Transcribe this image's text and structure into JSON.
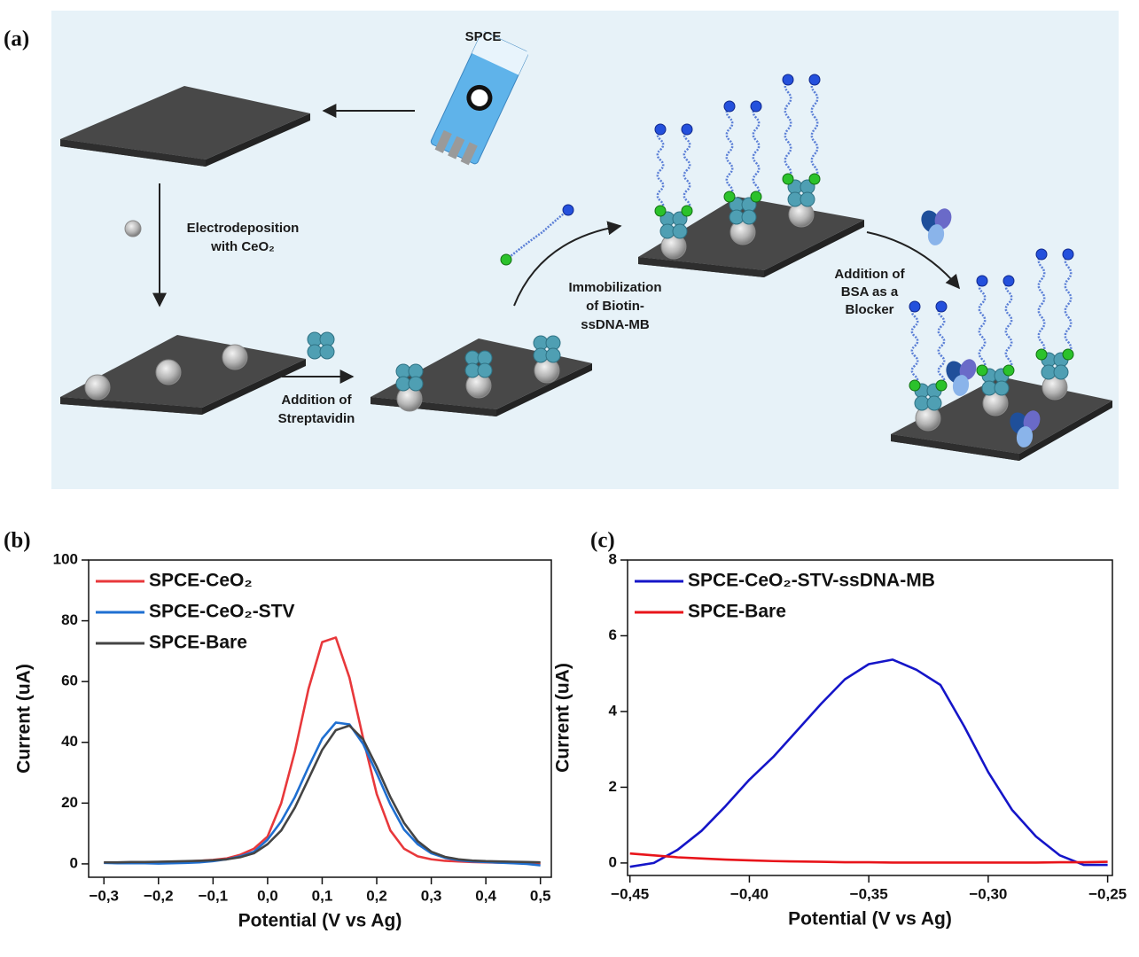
{
  "panel_labels": [
    "(a)",
    "(b)",
    "(c)"
  ],
  "schematic": {
    "spce_label": "SPCE",
    "steps": [
      {
        "lines": [
          "Electrodeposition",
          "with CeO₂"
        ]
      },
      {
        "lines": [
          "Addition of",
          "Streptavidin"
        ]
      },
      {
        "lines": [
          "Immobilization",
          "of Biotin-",
          "ssDNA-MB"
        ]
      },
      {
        "lines": [
          "Addition of",
          "BSA as a",
          "Blocker"
        ]
      }
    ]
  },
  "chart_data": [
    {
      "type": "line",
      "xlabel": "Potential (V vs Ag)",
      "ylabel": "Current (uA)",
      "legend": "upper left",
      "x": [
        -0.3,
        -0.275,
        -0.25,
        -0.225,
        -0.2,
        -0.175,
        -0.15,
        -0.125,
        -0.1,
        -0.075,
        -0.05,
        -0.025,
        0,
        0.025,
        0.05,
        0.075,
        0.1,
        0.125,
        0.15,
        0.175,
        0.2,
        0.225,
        0.25,
        0.275,
        0.3,
        0.325,
        0.35,
        0.375,
        0.4,
        0.425,
        0.45,
        0.475,
        0.5
      ],
      "series": [
        {
          "name": "SPCE-CeO₂",
          "color": "#e8383b",
          "values": [
            0.4,
            0.4,
            0.5,
            0.5,
            0.6,
            0.7,
            0.8,
            1.0,
            1.3,
            1.8,
            3.0,
            5.0,
            9,
            20,
            37,
            57.6,
            73,
            74.5,
            61.3,
            41.4,
            23,
            11,
            5,
            2.5,
            1.5,
            1.0,
            0.8,
            0.6,
            0.5,
            0.4,
            0.3,
            0.2,
            0.2
          ]
        },
        {
          "name": "SPCE-CeO₂-STV",
          "color": "#1f6fd1",
          "values": [
            0.3,
            0.2,
            0.2,
            0.2,
            0.1,
            0.2,
            0.3,
            0.5,
            0.9,
            1.5,
            2.5,
            4,
            8,
            14,
            22,
            31.9,
            41.2,
            46.5,
            45.9,
            39.5,
            29.8,
            19.6,
            11.3,
            6.5,
            3.5,
            2,
            1.2,
            0.8,
            0.6,
            0.4,
            0.2,
            0,
            -0.5
          ]
        },
        {
          "name": "SPCE-Bare",
          "color": "#444444",
          "values": [
            0.5,
            0.5,
            0.6,
            0.6,
            0.7,
            0.8,
            0.9,
            1.0,
            1.2,
            1.5,
            2.2,
            3.5,
            6.5,
            11,
            18.5,
            28,
            37.5,
            44,
            45.5,
            41,
            32,
            22,
            13.5,
            7.5,
            4,
            2.3,
            1.5,
            1.1,
            0.9,
            0.8,
            0.7,
            0.6,
            0.5
          ]
        }
      ],
      "xlim": [
        -0.328,
        0.52
      ],
      "ylim": [
        -4.4,
        100
      ],
      "xticks": [
        {
          "value": -0.3,
          "label": "−0,3"
        },
        {
          "value": -0.2,
          "label": "−0,2"
        },
        {
          "value": -0.1,
          "label": "−0,1"
        },
        {
          "value": 0,
          "label": "0,0"
        },
        {
          "value": 0.1,
          "label": "0,1"
        },
        {
          "value": 0.2,
          "label": "0,2"
        },
        {
          "value": 0.3,
          "label": "0,3"
        },
        {
          "value": 0.4,
          "label": "0,4"
        },
        {
          "value": 0.5,
          "label": "0,5"
        }
      ],
      "yticks": [
        0,
        20,
        40,
        60,
        80,
        100
      ]
    },
    {
      "type": "line",
      "xlabel": "Potential (V vs Ag)",
      "ylabel": "Current (uA)",
      "legend": "upper left",
      "x": [
        -0.45,
        -0.44,
        -0.43,
        -0.42,
        -0.41,
        -0.4,
        -0.39,
        -0.38,
        -0.37,
        -0.36,
        -0.35,
        -0.34,
        -0.33,
        -0.32,
        -0.31,
        -0.3,
        -0.29,
        -0.28,
        -0.27,
        -0.26,
        -0.25
      ],
      "series": [
        {
          "name": "SPCE-CeO₂-STV-ssDNA-MB",
          "color": "#1515c8",
          "values": [
            -0.1,
            0.0,
            0.35,
            0.85,
            1.5,
            2.2,
            2.8,
            3.5,
            4.2,
            4.85,
            5.25,
            5.37,
            5.1,
            4.7,
            3.6,
            2.4,
            1.4,
            0.7,
            0.2,
            -0.05,
            -0.05
          ]
        },
        {
          "name": "SPCE-Bare",
          "color": "#e8141a",
          "values": [
            0.25,
            0.2,
            0.15,
            0.12,
            0.09,
            0.07,
            0.05,
            0.04,
            0.03,
            0.02,
            0.02,
            0.01,
            0.01,
            0.01,
            0.01,
            0.01,
            0.01,
            0.01,
            0.02,
            0.02,
            0.03
          ]
        }
      ],
      "xlim": [
        -0.451,
        -0.248
      ],
      "ylim": [
        -0.33,
        8
      ],
      "xticks": [
        {
          "value": -0.45,
          "label": "−0,45"
        },
        {
          "value": -0.4,
          "label": "−0,40"
        },
        {
          "value": -0.35,
          "label": "−0,35"
        },
        {
          "value": -0.3,
          "label": "−0,30"
        },
        {
          "value": -0.25,
          "label": "−0,25"
        }
      ],
      "yticks": [
        0,
        2,
        4,
        6,
        8
      ]
    }
  ]
}
